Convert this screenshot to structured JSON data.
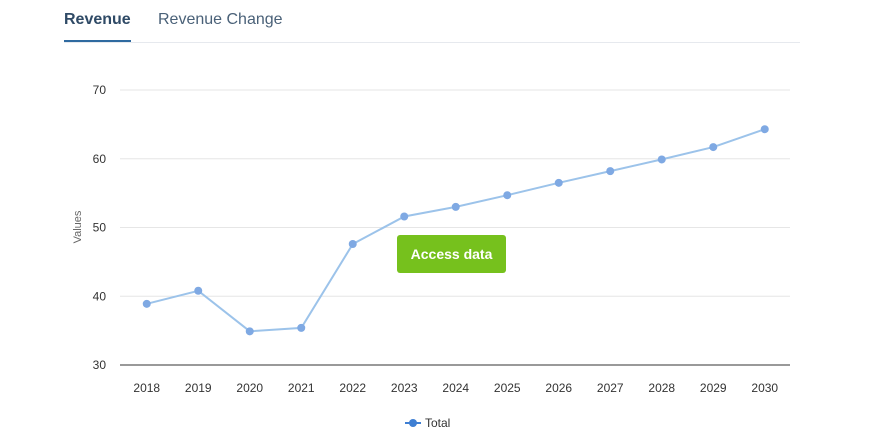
{
  "tabs": [
    {
      "label": "Revenue",
      "active": true
    },
    {
      "label": "Revenue Change",
      "active": false
    }
  ],
  "cta": {
    "label": "Access data",
    "color": "#76c11d"
  },
  "colors": {
    "series_line": "#9cc3ea",
    "series_marker": "#7fa9e3",
    "legend_marker": "#3f7fd3",
    "grid": "#e6e6e6",
    "axis": "#333333"
  },
  "chart_data": {
    "type": "line",
    "title": "",
    "xlabel": "",
    "ylabel": "Values",
    "categories": [
      "2018",
      "2019",
      "2020",
      "2021",
      "2022",
      "2023",
      "2024",
      "2025",
      "2026",
      "2027",
      "2028",
      "2029",
      "2030"
    ],
    "series": [
      {
        "name": "Total",
        "values": [
          38.9,
          40.8,
          34.9,
          35.4,
          47.6,
          51.6,
          53.0,
          54.7,
          56.5,
          58.2,
          59.9,
          61.7,
          64.3
        ]
      }
    ],
    "ylim": [
      30,
      70
    ],
    "yticks": [
      30,
      40,
      50,
      60,
      70
    ],
    "grid": true,
    "legend": "bottom-center"
  }
}
